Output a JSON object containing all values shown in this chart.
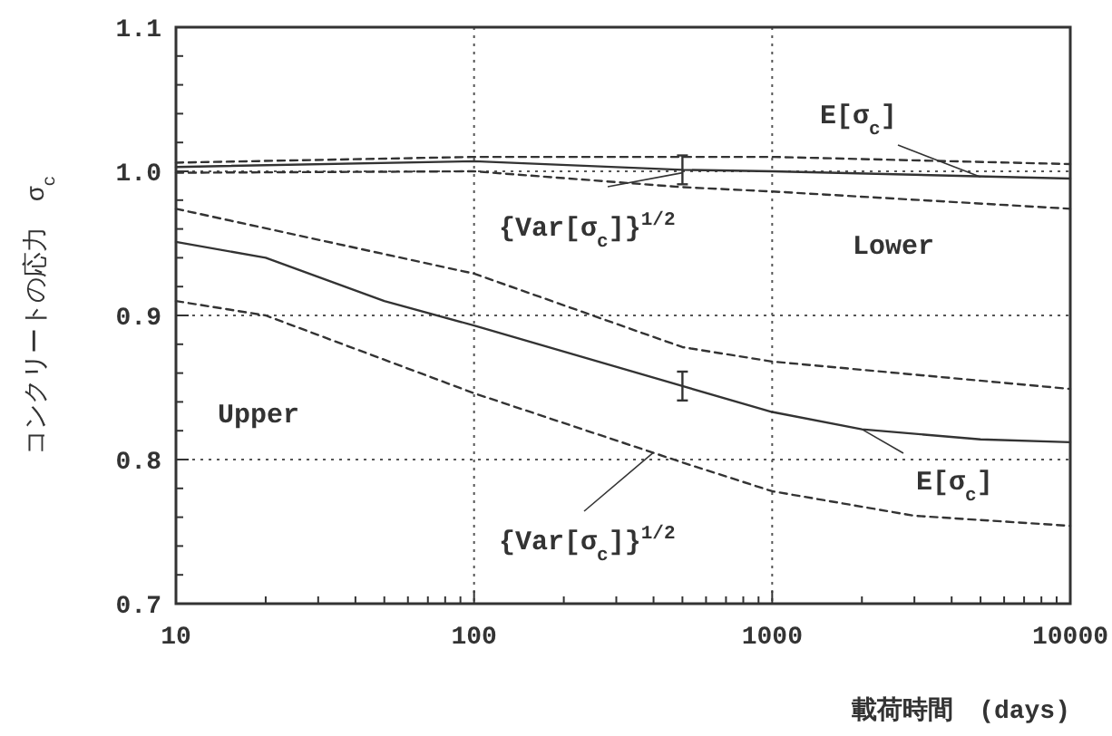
{
  "chart_data": {
    "type": "line",
    "xlabel": "載荷時間　(days)",
    "ylabel": "コンクリートの応力　σ$_{c}$",
    "log": "x",
    "xlim": [
      10,
      10000
    ],
    "ylim": [
      0.7,
      1.1
    ],
    "xticks": [
      10,
      100,
      1000,
      10000
    ],
    "yticks": [
      0.7,
      0.8,
      0.9,
      {
        "value": 1.0,
        "label": "1.0"
      },
      1.1
    ],
    "grid": true,
    "series": [
      {
        "color": "#333333",
        "line_style": "solid",
        "x": [
          10,
          100,
          500,
          1000,
          10000
        ],
        "values": [
          1.003,
          1.007,
          1.001,
          1.0,
          0.995
        ],
        "errors": [
          null,
          null,
          0.01,
          null,
          null
        ]
      },
      {
        "color": "#333333",
        "line_style": "dashed",
        "x": [
          10,
          100,
          1000,
          10000
        ],
        "values": [
          1.006,
          1.01,
          1.01,
          1.005
        ]
      },
      {
        "color": "#333333",
        "line_style": "dashed",
        "x": [
          10,
          100,
          500,
          1000,
          10000
        ],
        "values": [
          0.999,
          1.0,
          0.989,
          0.986,
          0.974
        ]
      },
      {
        "color": "#333333",
        "line_style": "solid",
        "x": [
          10,
          20,
          50,
          100,
          500,
          1000,
          2000,
          5000,
          10000
        ],
        "values": [
          0.951,
          0.94,
          0.91,
          0.893,
          0.851,
          0.833,
          0.821,
          0.814,
          0.812
        ],
        "errors": [
          null,
          null,
          null,
          null,
          0.01,
          null,
          null,
          null,
          null
        ]
      },
      {
        "color": "#333333",
        "line_style": "dashed",
        "x": [
          10,
          100,
          500,
          1000,
          10000
        ],
        "values": [
          0.974,
          0.929,
          0.878,
          0.868,
          0.849
        ]
      },
      {
        "color": "#333333",
        "line_style": "dashed",
        "x": [
          10,
          20,
          100,
          500,
          1000,
          3000,
          10000
        ],
        "values": [
          0.91,
          0.9,
          0.846,
          0.798,
          0.778,
          0.761,
          0.754
        ]
      }
    ],
    "annotations": [
      {
        "text": "E[σ$_{c}$]",
        "x": 5000,
        "y": 0.996
      },
      {
        "text": "{Var[σ$_{c}$]}$^{1/2}$",
        "x": 500,
        "y": 0.999
      },
      "Lower",
      "Upper",
      {
        "text": "{Var[σ$_{c}$]}$^{1/2}$",
        "x": 400,
        "y": 0.805
      },
      {
        "text": "E[σ$_{c}$]",
        "x": 2000,
        "y": 0.821
      }
    ]
  }
}
